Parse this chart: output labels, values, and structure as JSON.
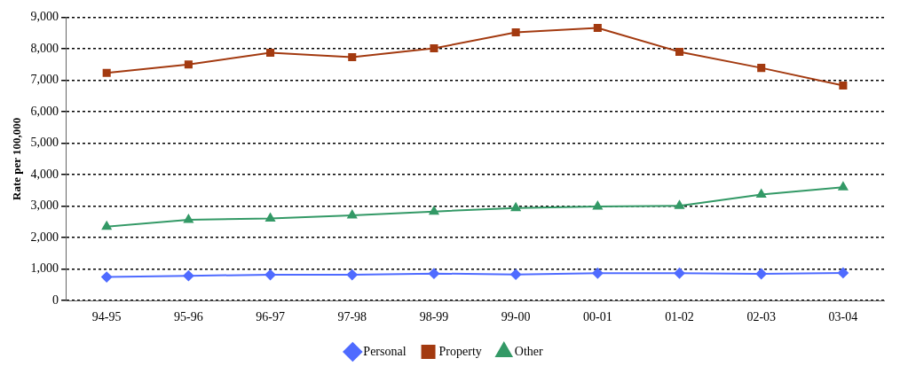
{
  "chart_data": {
    "type": "line",
    "ylabel": "Rate per 100,000",
    "categories": [
      "94-95",
      "95-96",
      "96-97",
      "97-98",
      "98-99",
      "99-00",
      "00-01",
      "01-02",
      "02-03",
      "03-04"
    ],
    "series": [
      {
        "name": "Personal",
        "color": "#4f6bff",
        "marker": "diamond",
        "values": [
          750,
          790,
          820,
          820,
          860,
          830,
          870,
          870,
          850,
          880
        ]
      },
      {
        "name": "Property",
        "color": "#a33a10",
        "marker": "square",
        "values": [
          7230,
          7500,
          7870,
          7730,
          8010,
          8520,
          8660,
          7900,
          7390,
          6830
        ]
      },
      {
        "name": "Other",
        "color": "#339966",
        "marker": "triangle",
        "values": [
          2350,
          2570,
          2610,
          2710,
          2830,
          2940,
          2990,
          3010,
          3370,
          3600
        ]
      }
    ],
    "ylim": [
      0,
      9000
    ],
    "yticks": [
      {
        "value": 0,
        "label": "0"
      },
      {
        "value": 1000,
        "label": "1,000"
      },
      {
        "value": 2000,
        "label": "2,000"
      },
      {
        "value": 3000,
        "label": "3,000"
      },
      {
        "value": 4000,
        "label": "4,000"
      },
      {
        "value": 5000,
        "label": "5,000"
      },
      {
        "value": 6000,
        "label": "6,000"
      },
      {
        "value": 7000,
        "label": "7,000"
      },
      {
        "value": 8000,
        "label": "8,000"
      },
      {
        "value": 9000,
        "label": "9,000"
      }
    ],
    "grid": "y",
    "legend": "bottom",
    "line_style": "solid"
  }
}
